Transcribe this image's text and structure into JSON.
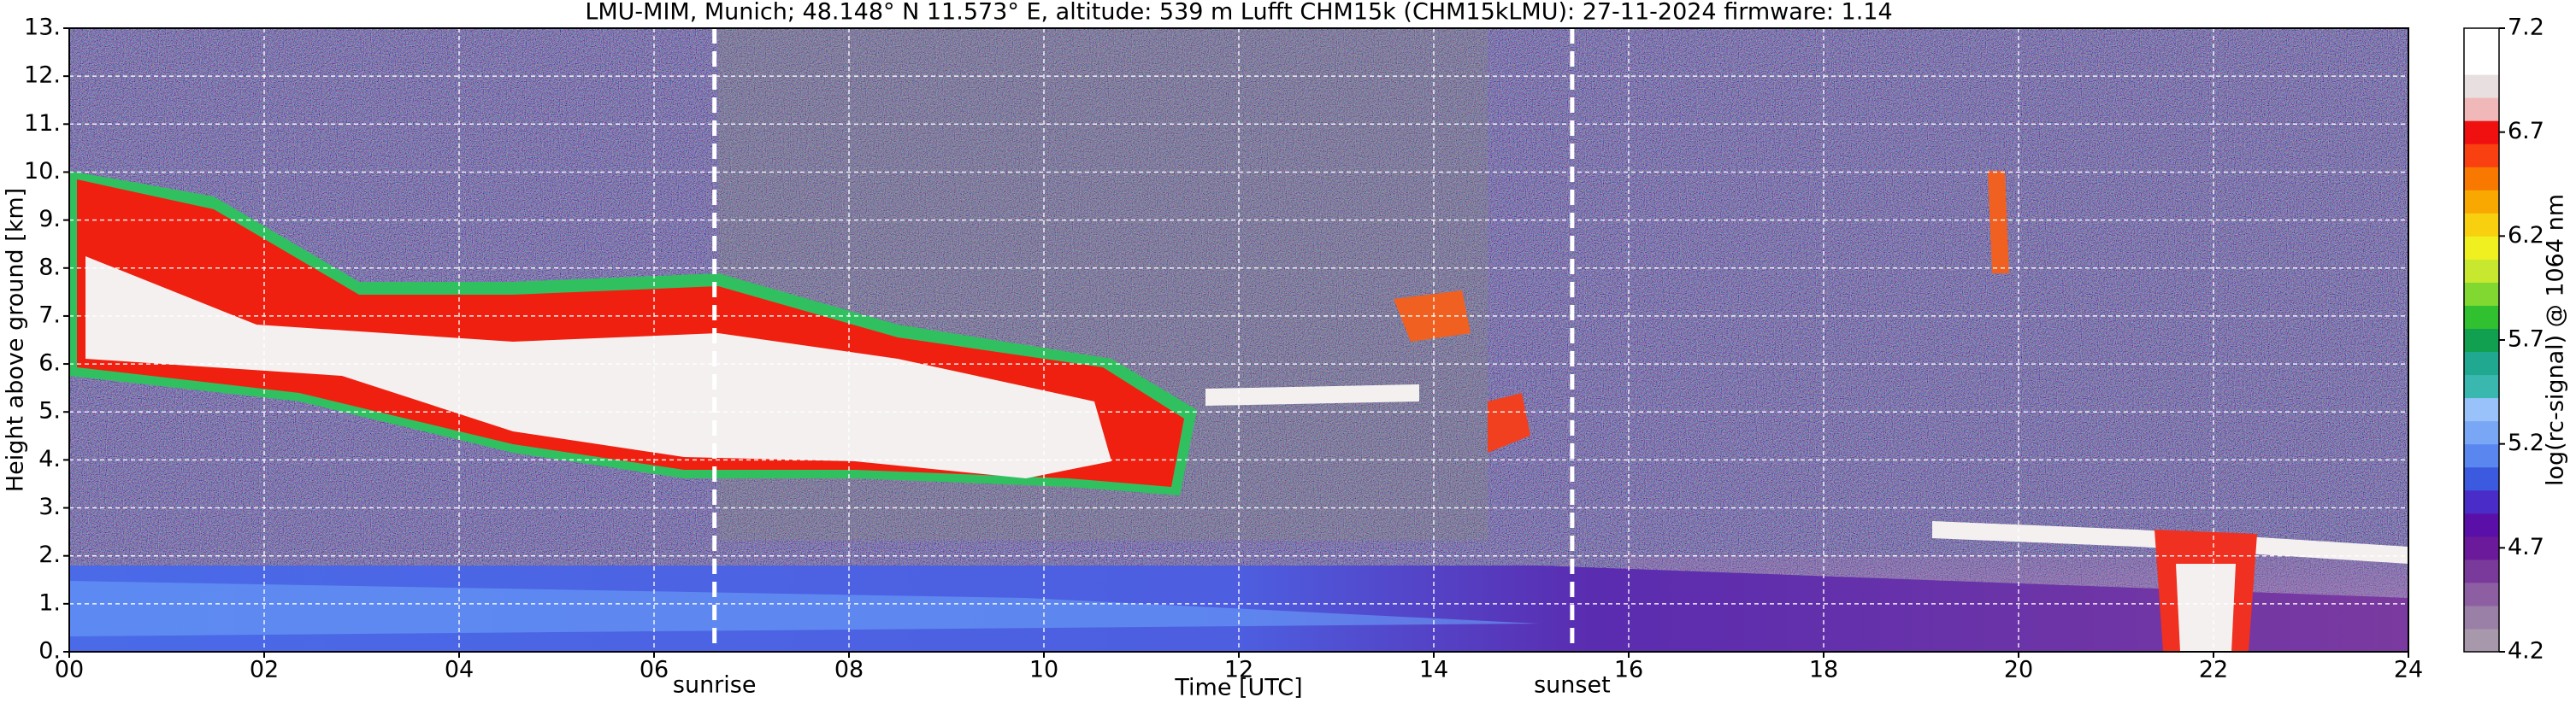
{
  "chart_data": {
    "type": "heatmap",
    "title": "LMU-MIM, Munich; 48.148° N 11.573° E, altitude: 539 m    Lufft CHM15k (CHM15kLMU): 27-11-2024    firmware: 1.14",
    "x_label": "Time [UTC]",
    "y_label": "Height above ground [km]",
    "xlim": [
      0,
      24
    ],
    "xticks": [
      {
        "value": 0,
        "label": "00"
      },
      {
        "value": 2,
        "label": "02"
      },
      {
        "value": 4,
        "label": "04"
      },
      {
        "value": 6,
        "label": "06"
      },
      {
        "value": 8,
        "label": "08"
      },
      {
        "value": 10,
        "label": "10"
      },
      {
        "value": 12,
        "label": "12"
      },
      {
        "value": 14,
        "label": "14"
      },
      {
        "value": 16,
        "label": "16"
      },
      {
        "value": 18,
        "label": "18"
      },
      {
        "value": 20,
        "label": "20"
      },
      {
        "value": 22,
        "label": "22"
      },
      {
        "value": 24,
        "label": "24"
      }
    ],
    "ylim": [
      0,
      13
    ],
    "yticks": [
      {
        "value": 0,
        "label": "0."
      },
      {
        "value": 1,
        "label": "1."
      },
      {
        "value": 2,
        "label": "2."
      },
      {
        "value": 3,
        "label": "3."
      },
      {
        "value": 4,
        "label": "4."
      },
      {
        "value": 5,
        "label": "5."
      },
      {
        "value": 6,
        "label": "6."
      },
      {
        "value": 7,
        "label": "7."
      },
      {
        "value": 8,
        "label": "8."
      },
      {
        "value": 9,
        "label": "9."
      },
      {
        "value": 10,
        "label": "10."
      },
      {
        "value": 11,
        "label": "11."
      },
      {
        "value": 12,
        "label": "12."
      },
      {
        "value": 13,
        "label": "13."
      }
    ],
    "grid": true,
    "vlines": [
      {
        "x": 6.62,
        "label": "sunrise"
      },
      {
        "x": 15.42,
        "label": "sunset"
      }
    ],
    "colorbar": {
      "label": "log(rc-signal) @ 1064 nm",
      "clim": [
        4.2,
        7.2
      ],
      "ticks": [
        4.2,
        4.7,
        5.2,
        5.7,
        6.2,
        6.7,
        7.2
      ],
      "colors": [
        "#a898ac",
        "#9a7fa6",
        "#8d5fa2",
        "#7a3a9c",
        "#6a1a9a",
        "#5a10a8",
        "#4a2cc8",
        "#3c5ae0",
        "#5a86f0",
        "#7aa6f6",
        "#9ac2fa",
        "#3ab8b0",
        "#20a890",
        "#10a050",
        "#30c030",
        "#80d830",
        "#c8e830",
        "#f0f020",
        "#f8d010",
        "#f8a800",
        "#f87800",
        "#f84010",
        "#f01010",
        "#f0b8b8",
        "#e8e0e0",
        "#ffffff",
        "#ffffff"
      ]
    }
  }
}
